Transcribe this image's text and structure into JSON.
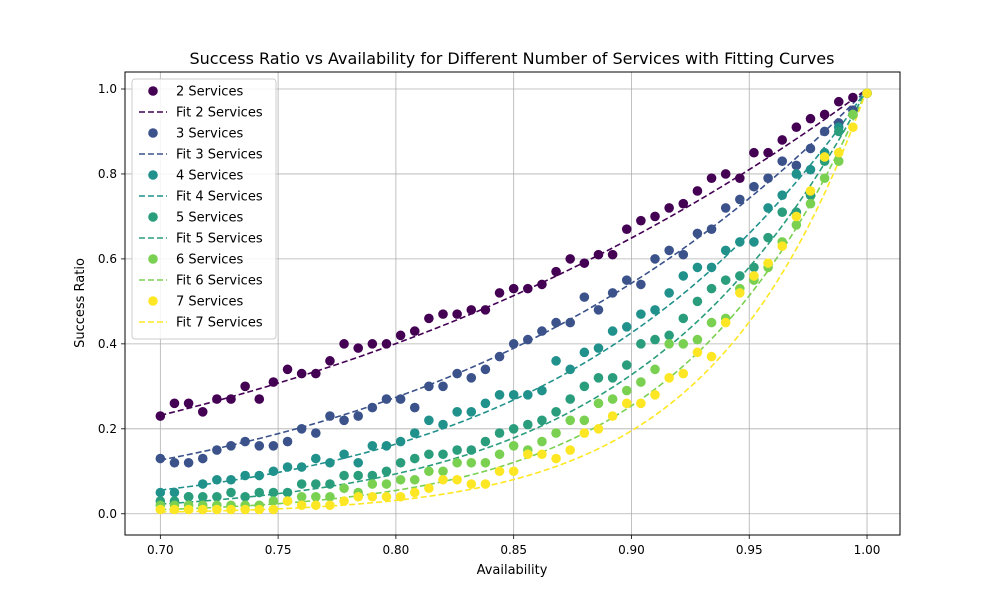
{
  "chart_data": {
    "type": "scatter",
    "title": "Success Ratio vs Availability for Different Number of Services with Fitting Curves",
    "xlabel": "Availability",
    "ylabel": "Success Ratio",
    "xlim": [
      0.685,
      1.014
    ],
    "ylim": [
      -0.05,
      1.04
    ],
    "xticks": [
      "0.70",
      "0.75",
      "0.80",
      "0.85",
      "0.90",
      "0.95",
      "1.00"
    ],
    "yticks": [
      "0.0",
      "0.2",
      "0.4",
      "0.6",
      "0.8",
      "1.0"
    ],
    "grid": true,
    "legend_position": "upper-left",
    "x": [
      0.7,
      0.706,
      0.712,
      0.718,
      0.724,
      0.73,
      0.736,
      0.742,
      0.748,
      0.754,
      0.76,
      0.766,
      0.772,
      0.778,
      0.784,
      0.79,
      0.796,
      0.802,
      0.808,
      0.814,
      0.82,
      0.826,
      0.832,
      0.838,
      0.844,
      0.85,
      0.856,
      0.862,
      0.868,
      0.874,
      0.88,
      0.886,
      0.892,
      0.898,
      0.904,
      0.91,
      0.916,
      0.922,
      0.928,
      0.934,
      0.94,
      0.946,
      0.952,
      0.958,
      0.964,
      0.97,
      0.976,
      0.982,
      0.988,
      0.994,
      1.0
    ],
    "series": [
      {
        "name": "2 Services",
        "fit_name": "Fit 2 Services",
        "color": "#440154",
        "fit_exponent": 4.1,
        "values": [
          0.23,
          0.26,
          0.26,
          0.24,
          0.27,
          0.27,
          0.3,
          0.27,
          0.31,
          0.34,
          0.33,
          0.33,
          0.36,
          0.4,
          0.39,
          0.4,
          0.4,
          0.42,
          0.43,
          0.46,
          0.47,
          0.47,
          0.48,
          0.48,
          0.52,
          0.53,
          0.53,
          0.54,
          0.57,
          0.6,
          0.59,
          0.61,
          0.61,
          0.67,
          0.69,
          0.7,
          0.72,
          0.73,
          0.76,
          0.79,
          0.8,
          0.79,
          0.85,
          0.85,
          0.88,
          0.91,
          0.93,
          0.94,
          0.97,
          0.98,
          0.99
        ]
      },
      {
        "name": "3 Services",
        "fit_name": "Fit 3 Services",
        "color": "#3b528b",
        "fit_exponent": 5.8,
        "values": [
          0.13,
          0.12,
          0.12,
          0.13,
          0.15,
          0.16,
          0.17,
          0.16,
          0.16,
          0.17,
          0.2,
          0.19,
          0.23,
          0.22,
          0.23,
          0.25,
          0.27,
          0.27,
          0.25,
          0.3,
          0.3,
          0.33,
          0.32,
          0.34,
          0.37,
          0.4,
          0.41,
          0.43,
          0.45,
          0.45,
          0.51,
          0.48,
          0.52,
          0.55,
          0.54,
          0.6,
          0.62,
          0.61,
          0.66,
          0.67,
          0.72,
          0.74,
          0.77,
          0.79,
          0.83,
          0.82,
          0.86,
          0.9,
          0.92,
          0.95,
          0.99
        ]
      },
      {
        "name": "4 Services",
        "fit_name": "Fit 4 Services",
        "color": "#21918c",
        "fit_exponent": 8.1,
        "values": [
          0.05,
          0.05,
          0.04,
          0.07,
          0.08,
          0.08,
          0.09,
          0.09,
          0.1,
          0.11,
          0.11,
          0.13,
          0.12,
          0.14,
          0.12,
          0.16,
          0.16,
          0.17,
          0.19,
          0.22,
          0.21,
          0.24,
          0.24,
          0.26,
          0.28,
          0.28,
          0.28,
          0.29,
          0.36,
          0.34,
          0.38,
          0.39,
          0.43,
          0.44,
          0.47,
          0.48,
          0.52,
          0.56,
          0.58,
          0.58,
          0.62,
          0.64,
          0.64,
          0.72,
          0.75,
          0.8,
          0.81,
          0.85,
          0.91,
          0.94,
          0.99
        ]
      },
      {
        "name": "5 Services",
        "fit_name": "Fit 5 Services",
        "color": "#2a9d7c",
        "fit_exponent": 10.6,
        "values": [
          0.03,
          0.03,
          0.04,
          0.04,
          0.04,
          0.05,
          0.04,
          0.05,
          0.05,
          0.05,
          0.07,
          0.07,
          0.07,
          0.09,
          0.09,
          0.09,
          0.1,
          0.12,
          0.13,
          0.14,
          0.14,
          0.15,
          0.15,
          0.17,
          0.19,
          0.2,
          0.21,
          0.22,
          0.24,
          0.27,
          0.3,
          0.32,
          0.32,
          0.35,
          0.4,
          0.41,
          0.42,
          0.46,
          0.5,
          0.53,
          0.55,
          0.56,
          0.58,
          0.65,
          0.71,
          0.71,
          0.75,
          0.83,
          0.9,
          0.94,
          0.99
        ]
      },
      {
        "name": "6 Services",
        "fit_name": "Fit 6 Services",
        "color": "#7ad151",
        "fit_exponent": 13.0,
        "values": [
          0.02,
          0.02,
          0.02,
          0.02,
          0.02,
          0.02,
          0.02,
          0.02,
          0.03,
          0.03,
          0.04,
          0.04,
          0.04,
          0.06,
          0.05,
          0.07,
          0.07,
          0.08,
          0.08,
          0.1,
          0.1,
          0.12,
          0.12,
          0.12,
          0.14,
          0.16,
          0.15,
          0.17,
          0.19,
          0.22,
          0.22,
          0.26,
          0.27,
          0.29,
          0.31,
          0.34,
          0.4,
          0.4,
          0.41,
          0.45,
          0.46,
          0.53,
          0.55,
          0.58,
          0.64,
          0.68,
          0.73,
          0.79,
          0.83,
          0.94,
          0.99
        ]
      },
      {
        "name": "7 Services",
        "fit_name": "Fit 7 Services",
        "color": "#fde725",
        "fit_exponent": 15.5,
        "values": [
          0.01,
          0.01,
          0.01,
          0.01,
          0.01,
          0.01,
          0.01,
          0.01,
          0.01,
          0.03,
          0.02,
          0.02,
          0.02,
          0.03,
          0.04,
          0.04,
          0.04,
          0.04,
          0.05,
          0.06,
          0.08,
          0.08,
          0.07,
          0.07,
          0.1,
          0.1,
          0.14,
          0.14,
          0.13,
          0.15,
          0.19,
          0.2,
          0.23,
          0.26,
          0.26,
          0.28,
          0.32,
          0.33,
          0.38,
          0.37,
          0.45,
          0.52,
          0.56,
          0.59,
          0.63,
          0.7,
          0.76,
          0.84,
          0.85,
          0.91,
          0.99
        ]
      }
    ]
  }
}
